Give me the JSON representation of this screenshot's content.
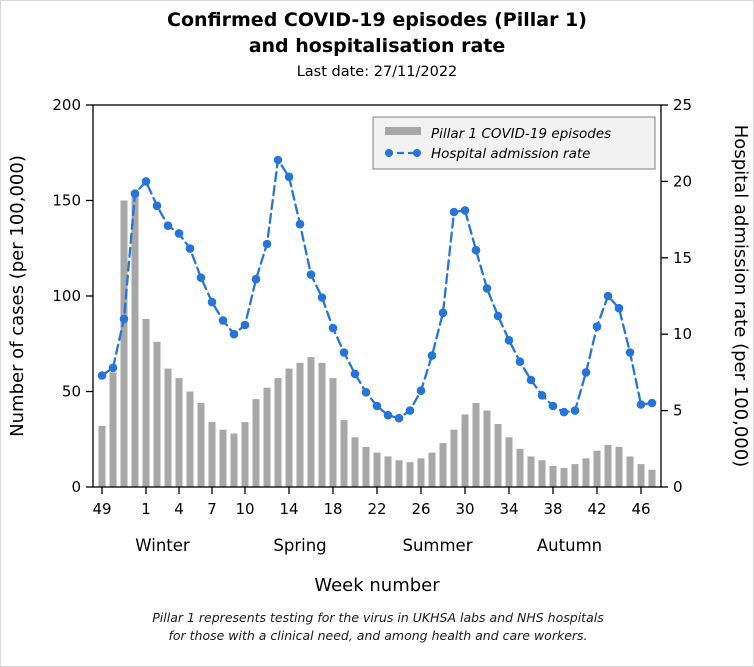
{
  "title": {
    "line1": "Confirmed COVID-19 episodes (Pillar 1)",
    "line2": "and hospitalisation rate",
    "subtitle": "Last date: 27/11/2022"
  },
  "footer": {
    "line1": "Pillar 1 represents testing for the virus in UKHSA labs and NHS hospitals",
    "line2": "for those with a clinical need, and among health and care workers."
  },
  "chart_data": {
    "type": "bar",
    "x": [
      49,
      50,
      51,
      52,
      1,
      2,
      3,
      4,
      5,
      6,
      7,
      8,
      9,
      10,
      11,
      12,
      13,
      14,
      15,
      16,
      17,
      18,
      19,
      20,
      21,
      22,
      23,
      24,
      25,
      26,
      27,
      28,
      29,
      30,
      31,
      32,
      33,
      34,
      35,
      36,
      37,
      38,
      39,
      40,
      41,
      42,
      43,
      44,
      45,
      46,
      47
    ],
    "series": [
      {
        "name": "Pillar 1 COVID-19 episodes",
        "type": "bar",
        "axis": "left",
        "color": "#a7a7a7",
        "values": [
          32,
          60,
          150,
          155,
          88,
          76,
          62,
          57,
          50,
          44,
          34,
          30,
          28,
          34,
          46,
          52,
          57,
          62,
          65,
          68,
          65,
          57,
          35,
          26,
          21,
          18,
          16,
          14,
          13,
          15,
          18,
          23,
          30,
          38,
          44,
          40,
          33,
          26,
          20,
          16,
          14,
          11,
          10,
          12,
          15,
          19,
          22,
          21,
          16,
          12,
          9
        ]
      },
      {
        "name": "Hospital admission rate",
        "type": "line",
        "axis": "right",
        "color": "#2575d8",
        "style": "dashed-with-markers",
        "values": [
          7.3,
          7.8,
          11.0,
          19.2,
          20.0,
          18.4,
          17.1,
          16.6,
          15.6,
          13.7,
          12.1,
          10.9,
          10.0,
          10.6,
          13.6,
          15.9,
          21.4,
          20.3,
          17.2,
          13.9,
          12.4,
          10.4,
          8.8,
          7.4,
          6.2,
          5.3,
          4.7,
          4.5,
          5.0,
          6.3,
          8.6,
          11.4,
          18.0,
          18.1,
          15.5,
          13.0,
          11.2,
          9.6,
          8.2,
          7.0,
          6.0,
          5.3,
          4.9,
          5.0,
          7.5,
          10.5,
          12.5,
          11.7,
          8.8,
          5.4,
          5.5
        ]
      }
    ],
    "left_axis": {
      "label": "Number of cases (per 100,000)",
      "range": [
        0,
        200
      ],
      "ticks": [
        0,
        50,
        100,
        150,
        200
      ]
    },
    "right_axis": {
      "label": "Hospital admission rate (per 100,000)",
      "range": [
        0,
        25
      ],
      "ticks": [
        0,
        5,
        10,
        15,
        20,
        25
      ]
    },
    "x_axis": {
      "label": "Week number",
      "tick_weeks": [
        49,
        1,
        4,
        7,
        10,
        14,
        18,
        22,
        26,
        30,
        34,
        38,
        42,
        46
      ]
    },
    "season_labels": [
      {
        "label": "Winter",
        "center_index": 5.5
      },
      {
        "label": "Spring",
        "center_index": 18
      },
      {
        "label": "Summer",
        "center_index": 30.5
      },
      {
        "label": "Autumn",
        "center_index": 42.5
      }
    ],
    "legend": {
      "position": "top-right",
      "grid": "off"
    }
  }
}
